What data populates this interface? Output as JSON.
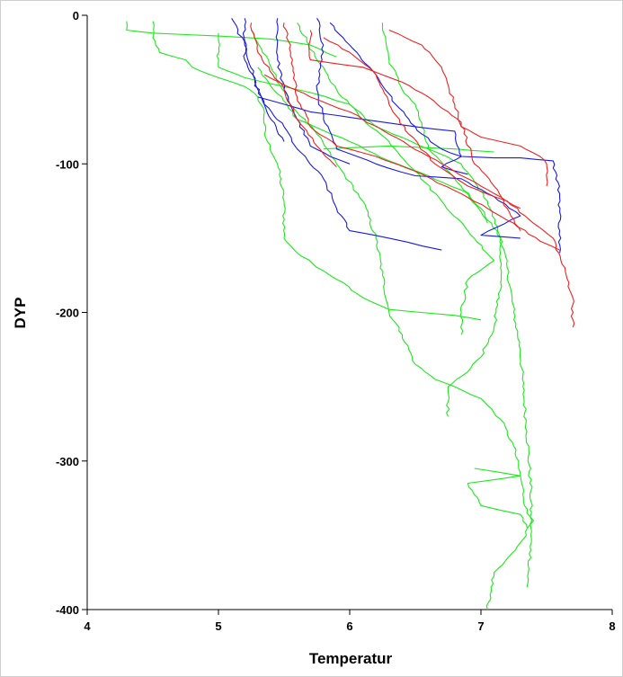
{
  "chart_data": {
    "type": "line",
    "xlabel": "Temperatur",
    "ylabel": "DYP",
    "xlim": [
      4,
      8
    ],
    "ylim": [
      -400,
      0
    ],
    "x_ticks": [
      "4",
      "5",
      "6",
      "7",
      "8"
    ],
    "y_ticks": [
      "0",
      "-100",
      "-200",
      "-300",
      "-400"
    ],
    "grid": false,
    "legend": "none",
    "colors": {
      "green": "#1de81d",
      "blue": "#1a1ae0",
      "red": "#ee2222"
    },
    "series": [
      {
        "color": "green",
        "points": [
          [
            4.3,
            -4
          ],
          [
            4.3,
            -10
          ],
          [
            4.5,
            -12
          ],
          [
            5.0,
            -14
          ],
          [
            5.4,
            -16
          ],
          [
            5.7,
            -20
          ],
          [
            5.9,
            -28
          ]
        ]
      },
      {
        "color": "green",
        "points": [
          [
            4.5,
            -4
          ],
          [
            4.5,
            -15
          ],
          [
            4.55,
            -25
          ],
          [
            4.75,
            -30
          ],
          [
            4.8,
            -35
          ],
          [
            5.0,
            -42
          ],
          [
            5.2,
            -48
          ],
          [
            5.3,
            -55
          ],
          [
            5.35,
            -65
          ],
          [
            5.35,
            -80
          ],
          [
            5.45,
            -100
          ],
          [
            5.5,
            -125
          ],
          [
            5.5,
            -150
          ],
          [
            5.6,
            -160
          ],
          [
            5.8,
            -172
          ],
          [
            5.95,
            -180
          ],
          [
            6.1,
            -190
          ],
          [
            6.3,
            -198
          ],
          [
            6.8,
            -202
          ],
          [
            7.0,
            -205
          ]
        ]
      },
      {
        "color": "green",
        "points": [
          [
            5.0,
            -12
          ],
          [
            5.0,
            -35
          ],
          [
            5.2,
            -42
          ],
          [
            5.5,
            -48
          ],
          [
            5.7,
            -52
          ],
          [
            6.0,
            -60
          ],
          [
            6.2,
            -75
          ],
          [
            6.6,
            -90
          ],
          [
            6.85,
            -100
          ],
          [
            7.05,
            -125
          ],
          [
            7.15,
            -150
          ],
          [
            7.2,
            -170
          ],
          [
            7.25,
            -200
          ],
          [
            7.3,
            -225
          ],
          [
            7.32,
            -250
          ],
          [
            7.35,
            -280
          ],
          [
            7.38,
            -320
          ],
          [
            7.38,
            -360
          ],
          [
            7.35,
            -385
          ]
        ]
      },
      {
        "color": "green",
        "points": [
          [
            5.25,
            -10
          ],
          [
            5.4,
            -35
          ],
          [
            5.55,
            -60
          ],
          [
            5.75,
            -80
          ],
          [
            5.9,
            -100
          ],
          [
            6.1,
            -125
          ],
          [
            6.2,
            -150
          ],
          [
            6.25,
            -175
          ],
          [
            6.3,
            -200
          ],
          [
            6.4,
            -215
          ],
          [
            6.5,
            -235
          ],
          [
            6.65,
            -245
          ],
          [
            6.8,
            -250
          ],
          [
            7.0,
            -258
          ],
          [
            7.15,
            -272
          ],
          [
            7.25,
            -290
          ],
          [
            7.3,
            -310
          ],
          [
            7.35,
            -335
          ],
          [
            7.4,
            -340
          ],
          [
            7.3,
            -355
          ],
          [
            7.1,
            -375
          ],
          [
            7.05,
            -400
          ]
        ]
      },
      {
        "color": "green",
        "points": [
          [
            5.6,
            -5
          ],
          [
            5.75,
            -30
          ],
          [
            5.9,
            -50
          ],
          [
            6.1,
            -70
          ],
          [
            6.3,
            -85
          ],
          [
            6.5,
            -105
          ],
          [
            6.7,
            -125
          ],
          [
            6.9,
            -145
          ],
          [
            7.1,
            -165
          ],
          [
            6.9,
            -178
          ],
          [
            6.85,
            -200
          ],
          [
            6.85,
            -215
          ]
        ]
      },
      {
        "color": "green",
        "points": [
          [
            6.25,
            -5
          ],
          [
            6.3,
            -30
          ],
          [
            6.4,
            -50
          ],
          [
            6.5,
            -60
          ],
          [
            6.55,
            -75
          ],
          [
            6.6,
            -90
          ],
          [
            6.8,
            -110
          ],
          [
            7.0,
            -130
          ],
          [
            7.15,
            -150
          ],
          [
            7.15,
            -180
          ],
          [
            7.1,
            -210
          ],
          [
            7.0,
            -230
          ],
          [
            6.9,
            -240
          ],
          [
            6.75,
            -250
          ],
          [
            6.75,
            -270
          ]
        ]
      },
      {
        "color": "green",
        "points": [
          [
            5.3,
            -35
          ],
          [
            5.6,
            -70
          ],
          [
            6.0,
            -85
          ],
          [
            6.3,
            -98
          ],
          [
            6.6,
            -108
          ],
          [
            6.9,
            -120
          ],
          [
            7.05,
            -140
          ]
        ]
      },
      {
        "color": "green",
        "points": [
          [
            5.8,
            -90
          ],
          [
            6.3,
            -88
          ],
          [
            6.8,
            -90
          ],
          [
            7.1,
            -92
          ]
        ]
      },
      {
        "color": "green",
        "points": [
          [
            6.95,
            -305
          ],
          [
            7.3,
            -310
          ],
          [
            6.9,
            -315
          ],
          [
            7.0,
            -330
          ],
          [
            7.3,
            -336
          ],
          [
            7.35,
            -345
          ]
        ]
      },
      {
        "color": "blue",
        "points": [
          [
            5.1,
            -2
          ],
          [
            5.2,
            -20
          ],
          [
            5.3,
            -50
          ],
          [
            5.4,
            -70
          ],
          [
            5.5,
            -85
          ]
        ]
      },
      {
        "color": "blue",
        "points": [
          [
            5.2,
            -2
          ],
          [
            5.2,
            -30
          ],
          [
            5.35,
            -60
          ],
          [
            5.5,
            -75
          ],
          [
            5.6,
            -90
          ],
          [
            5.8,
            -110
          ],
          [
            5.9,
            -130
          ],
          [
            6.0,
            -145
          ],
          [
            6.3,
            -150
          ],
          [
            6.7,
            -158
          ]
        ]
      },
      {
        "color": "blue",
        "points": [
          [
            5.45,
            -2
          ],
          [
            5.45,
            -30
          ],
          [
            5.5,
            -50
          ],
          [
            5.6,
            -70
          ],
          [
            5.7,
            -88
          ],
          [
            5.85,
            -95
          ],
          [
            6.0,
            -100
          ]
        ]
      },
      {
        "color": "blue",
        "points": [
          [
            5.75,
            -2
          ],
          [
            5.8,
            -20
          ],
          [
            5.75,
            -50
          ],
          [
            5.8,
            -70
          ],
          [
            5.9,
            -90
          ],
          [
            6.2,
            -100
          ],
          [
            6.5,
            -108
          ],
          [
            6.85,
            -110
          ],
          [
            7.1,
            -122
          ],
          [
            7.3,
            -135
          ],
          [
            7.0,
            -148
          ],
          [
            7.3,
            -150
          ]
        ]
      },
      {
        "color": "blue",
        "points": [
          [
            5.85,
            -5
          ],
          [
            6.0,
            -20
          ],
          [
            6.2,
            -40
          ],
          [
            6.35,
            -60
          ],
          [
            6.55,
            -80
          ],
          [
            6.7,
            -90
          ],
          [
            6.85,
            -95
          ],
          [
            7.1,
            -96
          ],
          [
            7.3,
            -96
          ],
          [
            7.55,
            -98
          ],
          [
            7.6,
            -120
          ],
          [
            7.6,
            -145
          ],
          [
            7.6,
            -160
          ]
        ]
      },
      {
        "color": "blue",
        "points": [
          [
            5.3,
            -55
          ],
          [
            5.7,
            -65
          ],
          [
            6.1,
            -70
          ],
          [
            6.5,
            -75
          ],
          [
            6.8,
            -78
          ],
          [
            6.85,
            -95
          ],
          [
            6.7,
            -102
          ],
          [
            6.9,
            -107
          ]
        ]
      },
      {
        "color": "red",
        "points": [
          [
            5.25,
            -5
          ],
          [
            5.3,
            -25
          ],
          [
            5.5,
            -50
          ],
          [
            5.6,
            -70
          ],
          [
            5.75,
            -88
          ],
          [
            5.9,
            -102
          ]
        ]
      },
      {
        "color": "red",
        "points": [
          [
            5.5,
            -5
          ],
          [
            5.55,
            -25
          ],
          [
            5.6,
            -55
          ],
          [
            5.7,
            -75
          ],
          [
            5.9,
            -88
          ],
          [
            6.2,
            -95
          ],
          [
            6.5,
            -105
          ],
          [
            6.8,
            -118
          ],
          [
            7.05,
            -130
          ],
          [
            7.25,
            -140
          ],
          [
            7.45,
            -152
          ],
          [
            7.6,
            -158
          ]
        ]
      },
      {
        "color": "red",
        "points": [
          [
            5.7,
            -10
          ],
          [
            5.7,
            -30
          ],
          [
            6.1,
            -35
          ],
          [
            6.4,
            -45
          ],
          [
            6.6,
            -55
          ],
          [
            6.75,
            -65
          ],
          [
            6.85,
            -72
          ],
          [
            6.95,
            -100
          ],
          [
            7.1,
            -115
          ],
          [
            7.2,
            -130
          ],
          [
            7.3,
            -145
          ]
        ]
      },
      {
        "color": "red",
        "points": [
          [
            5.8,
            -15
          ],
          [
            6.0,
            -25
          ],
          [
            6.2,
            -40
          ],
          [
            6.3,
            -60
          ],
          [
            6.45,
            -80
          ],
          [
            6.65,
            -100
          ],
          [
            6.9,
            -115
          ],
          [
            7.2,
            -125
          ],
          [
            7.4,
            -140
          ],
          [
            7.55,
            -150
          ],
          [
            7.65,
            -175
          ],
          [
            7.7,
            -190
          ],
          [
            7.7,
            -210
          ]
        ]
      },
      {
        "color": "red",
        "points": [
          [
            6.3,
            -10
          ],
          [
            6.55,
            -20
          ],
          [
            6.7,
            -35
          ],
          [
            6.8,
            -60
          ],
          [
            6.85,
            -75
          ],
          [
            7.0,
            -82
          ],
          [
            7.3,
            -88
          ],
          [
            7.45,
            -95
          ],
          [
            7.5,
            -100
          ],
          [
            7.5,
            -115
          ]
        ]
      },
      {
        "color": "red",
        "points": [
          [
            5.35,
            -40
          ],
          [
            5.7,
            -55
          ],
          [
            6.0,
            -65
          ],
          [
            6.3,
            -80
          ],
          [
            6.6,
            -95
          ],
          [
            6.9,
            -110
          ],
          [
            7.1,
            -120
          ],
          [
            7.3,
            -130
          ]
        ]
      }
    ]
  }
}
